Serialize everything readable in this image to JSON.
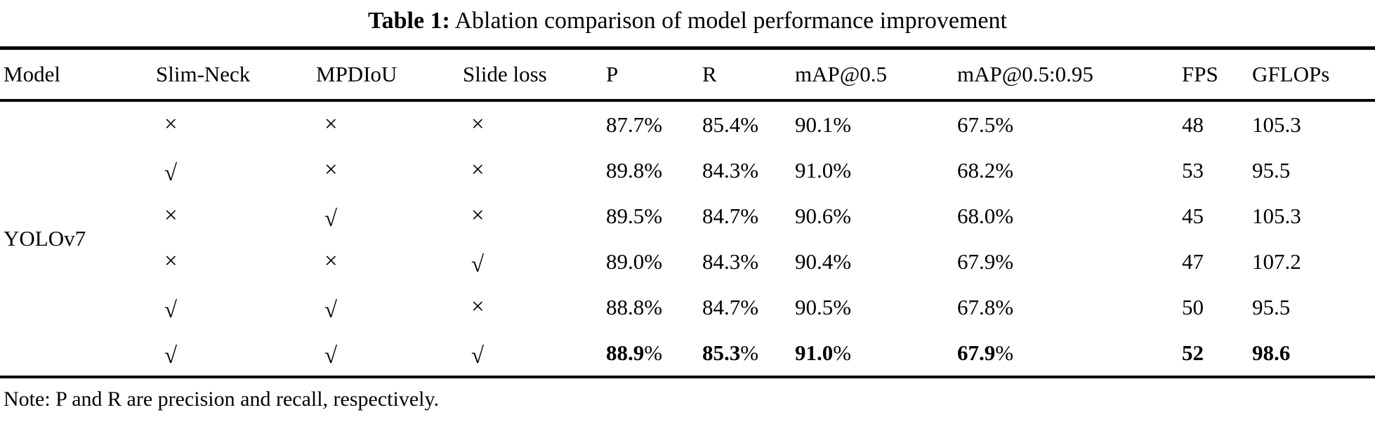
{
  "title": {
    "label": "Table 1:",
    "text": "Ablation comparison of model performance improvement"
  },
  "table": {
    "columns": [
      "Model",
      "Slim-Neck",
      "MPDIoU",
      "Slide loss",
      "P",
      "R",
      "mAP@0.5",
      "mAP@0.5:0.95",
      "FPS",
      "GFLOPs"
    ],
    "model_label": "YOLOv7",
    "check_glyph": "√",
    "cross_glyph": "×",
    "rows": [
      {
        "slim_neck": false,
        "mpdiou": false,
        "slide_loss": false,
        "p": "87.7%",
        "r": "85.4%",
        "map50": "90.1%",
        "map5095": "67.5%",
        "fps": "48",
        "gflops": "105.3",
        "bold": false
      },
      {
        "slim_neck": true,
        "mpdiou": false,
        "slide_loss": false,
        "p": "89.8%",
        "r": "84.3%",
        "map50": "91.0%",
        "map5095": "68.2%",
        "fps": "53",
        "gflops": "95.5",
        "bold": false
      },
      {
        "slim_neck": false,
        "mpdiou": true,
        "slide_loss": false,
        "p": "89.5%",
        "r": "84.7%",
        "map50": "90.6%",
        "map5095": "68.0%",
        "fps": "45",
        "gflops": "105.3",
        "bold": false
      },
      {
        "slim_neck": false,
        "mpdiou": false,
        "slide_loss": true,
        "p": "89.0%",
        "r": "84.3%",
        "map50": "90.4%",
        "map5095": "67.9%",
        "fps": "47",
        "gflops": "107.2",
        "bold": false
      },
      {
        "slim_neck": true,
        "mpdiou": true,
        "slide_loss": false,
        "p": "88.8%",
        "r": "84.7%",
        "map50": "90.5%",
        "map5095": "67.8%",
        "fps": "50",
        "gflops": "95.5",
        "bold": false
      },
      {
        "slim_neck": true,
        "mpdiou": true,
        "slide_loss": true,
        "p": "88.9%",
        "r": "85.3%",
        "map50": "91.0%",
        "map5095": "67.9%",
        "fps": "52",
        "gflops": "98.6",
        "bold": true
      }
    ]
  },
  "note": "Note: P and R are precision and recall, respectively.",
  "colors": {
    "text": "#000000",
    "background": "#ffffff",
    "rule": "#000000"
  }
}
